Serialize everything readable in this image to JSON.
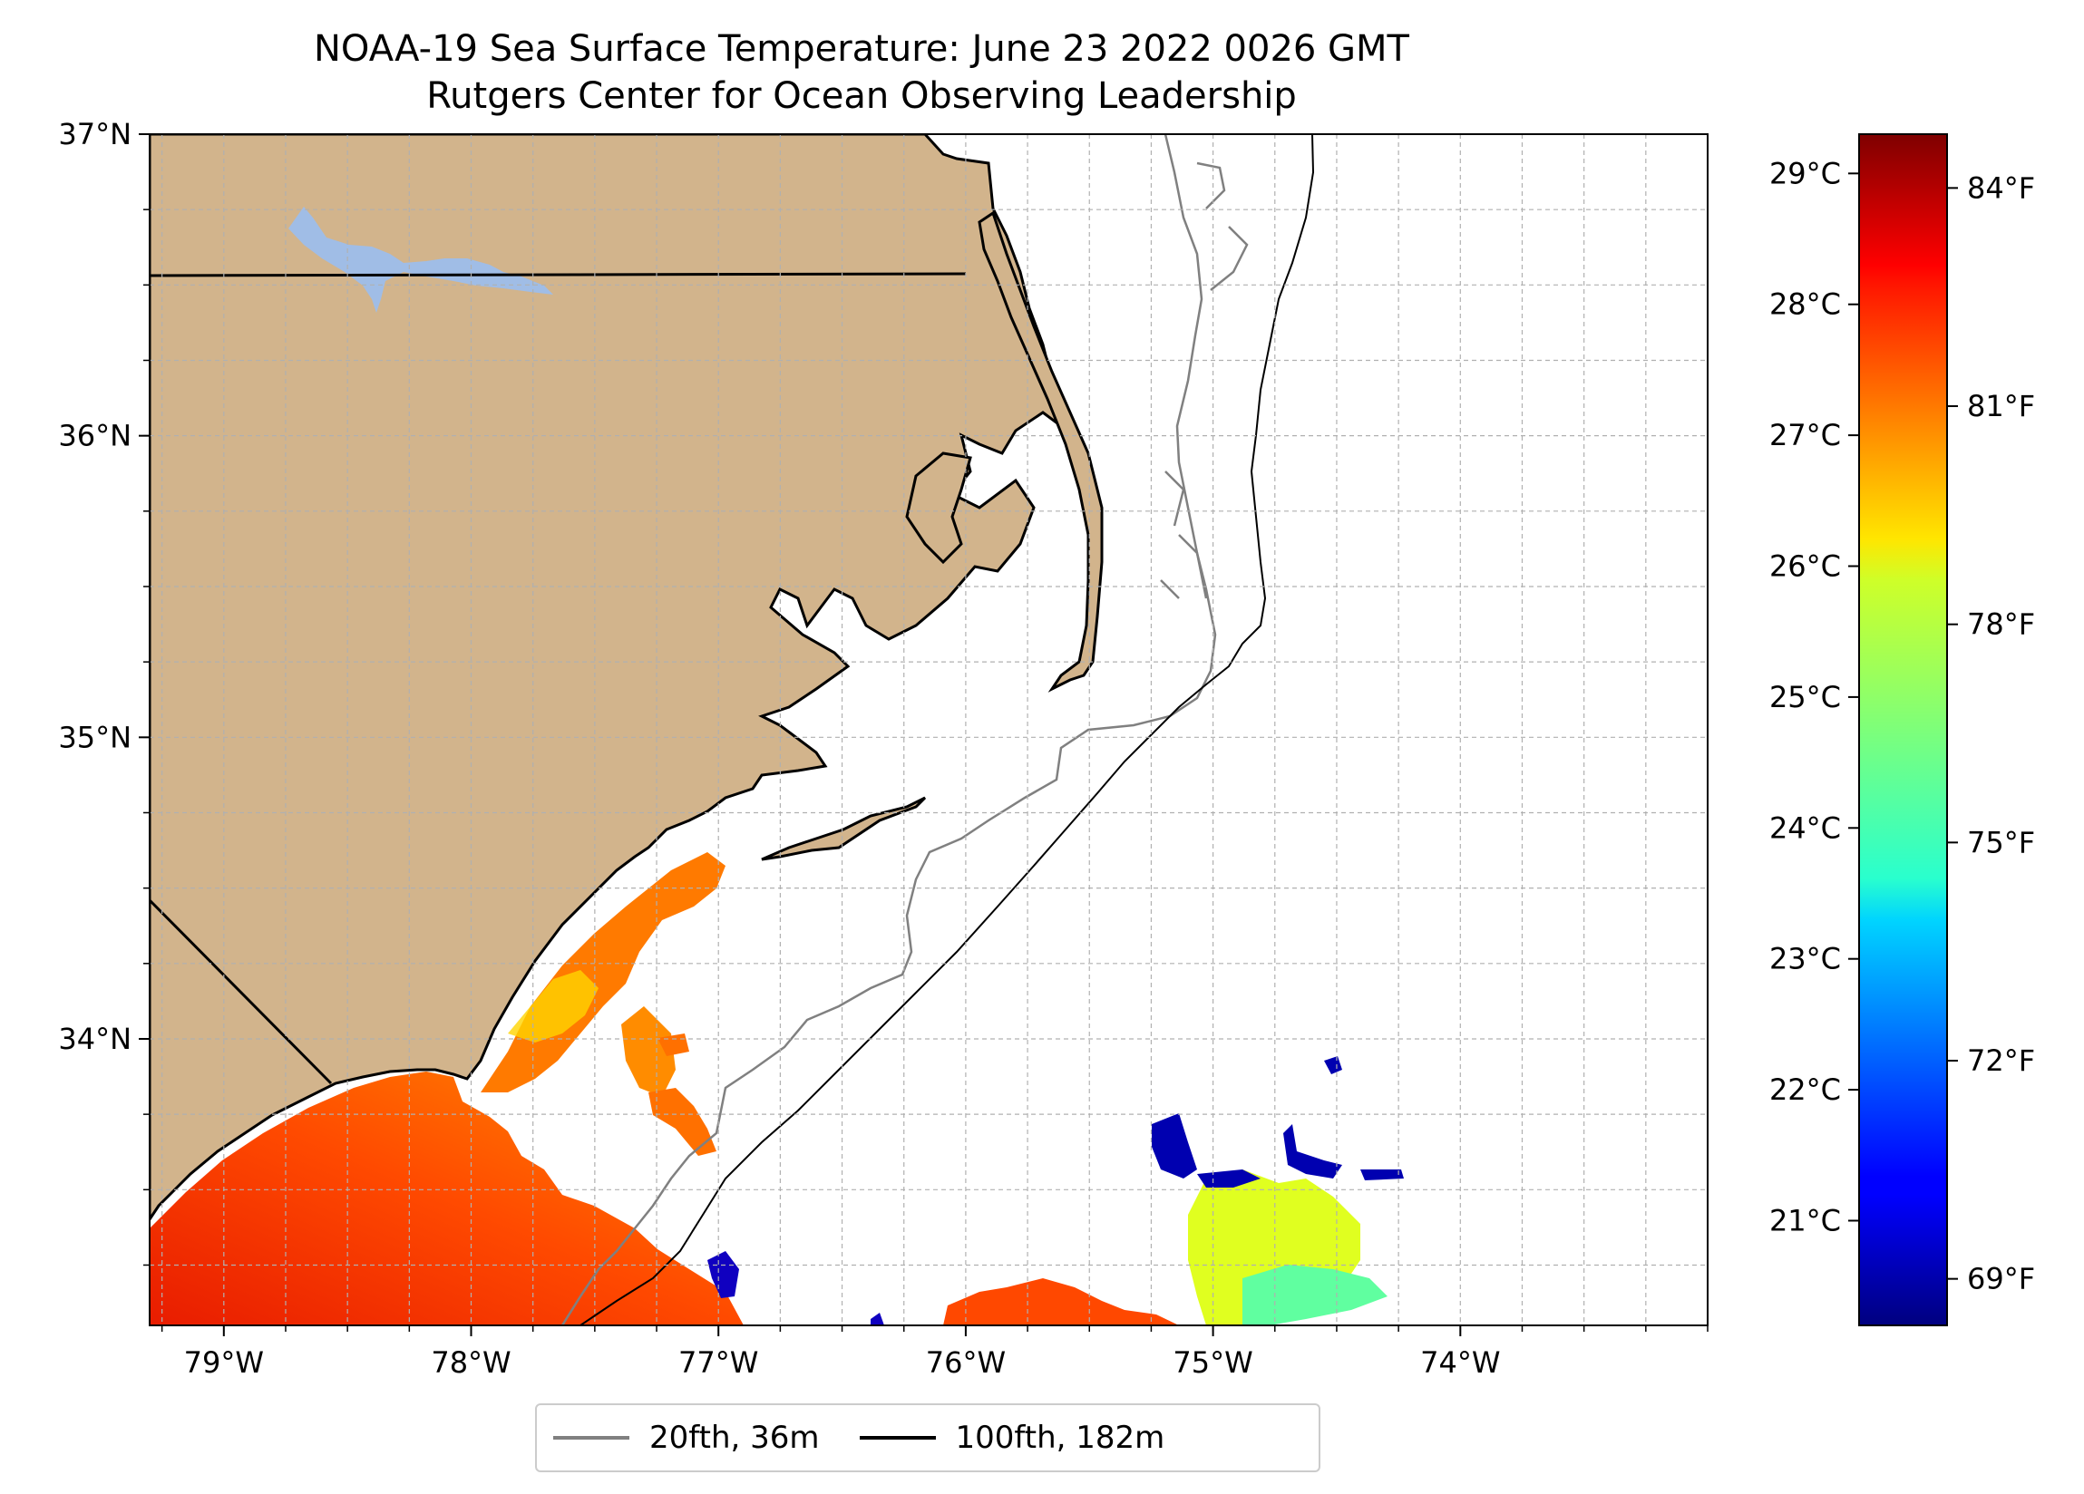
{
  "title": "NOAA-19 Sea Surface Temperature: June 23 2022 0026 GMT",
  "subtitle": "Rutgers Center for Ocean Observing Leadership",
  "colors": {
    "land": "#d2b48c",
    "lake": "#a0bde6",
    "ocean_no_data": "#ffffff",
    "coastline": "#000000",
    "isobath_20fth": "#808080",
    "isobath_100fth": "#000000",
    "grid": "#b0b0b0"
  },
  "map": {
    "lon_range": [
      -79.3,
      -73.0
    ],
    "lat_range": [
      33.05,
      37.0
    ],
    "lon_ticks": [
      {
        "value": -79,
        "label": "79°W"
      },
      {
        "value": -78,
        "label": "78°W"
      },
      {
        "value": -77,
        "label": "77°W"
      },
      {
        "value": -76,
        "label": "76°W"
      },
      {
        "value": -75,
        "label": "75°W"
      },
      {
        "value": -74,
        "label": "74°W"
      }
    ],
    "lat_ticks": [
      {
        "value": 37,
        "label": "37°N"
      },
      {
        "value": 36,
        "label": "36°N"
      },
      {
        "value": 35,
        "label": "35°N"
      },
      {
        "value": 34,
        "label": "34°N"
      }
    ],
    "grid": true
  },
  "colorbar": {
    "colormap": "jet",
    "celsius_ticks": [
      {
        "value": 29,
        "label": "29°C"
      },
      {
        "value": 28,
        "label": "28°C"
      },
      {
        "value": 27,
        "label": "27°C"
      },
      {
        "value": 26,
        "label": "26°C"
      },
      {
        "value": 25,
        "label": "25°C"
      },
      {
        "value": 24,
        "label": "24°C"
      },
      {
        "value": 23,
        "label": "23°C"
      },
      {
        "value": 22,
        "label": "22°C"
      },
      {
        "value": 21,
        "label": "21°C"
      }
    ],
    "fahrenheit_ticks": [
      {
        "value": 84,
        "label": "84°F"
      },
      {
        "value": 81,
        "label": "81°F"
      },
      {
        "value": 78,
        "label": "78°F"
      },
      {
        "value": 75,
        "label": "75°F"
      },
      {
        "value": 72,
        "label": "72°F"
      },
      {
        "value": 69,
        "label": "69°F"
      }
    ],
    "range_celsius": [
      20.2,
      29.3
    ]
  },
  "legend": {
    "items": [
      {
        "label": "20fth, 36m",
        "color": "#808080"
      },
      {
        "label": "100fth, 182m",
        "color": "#000000"
      }
    ]
  }
}
